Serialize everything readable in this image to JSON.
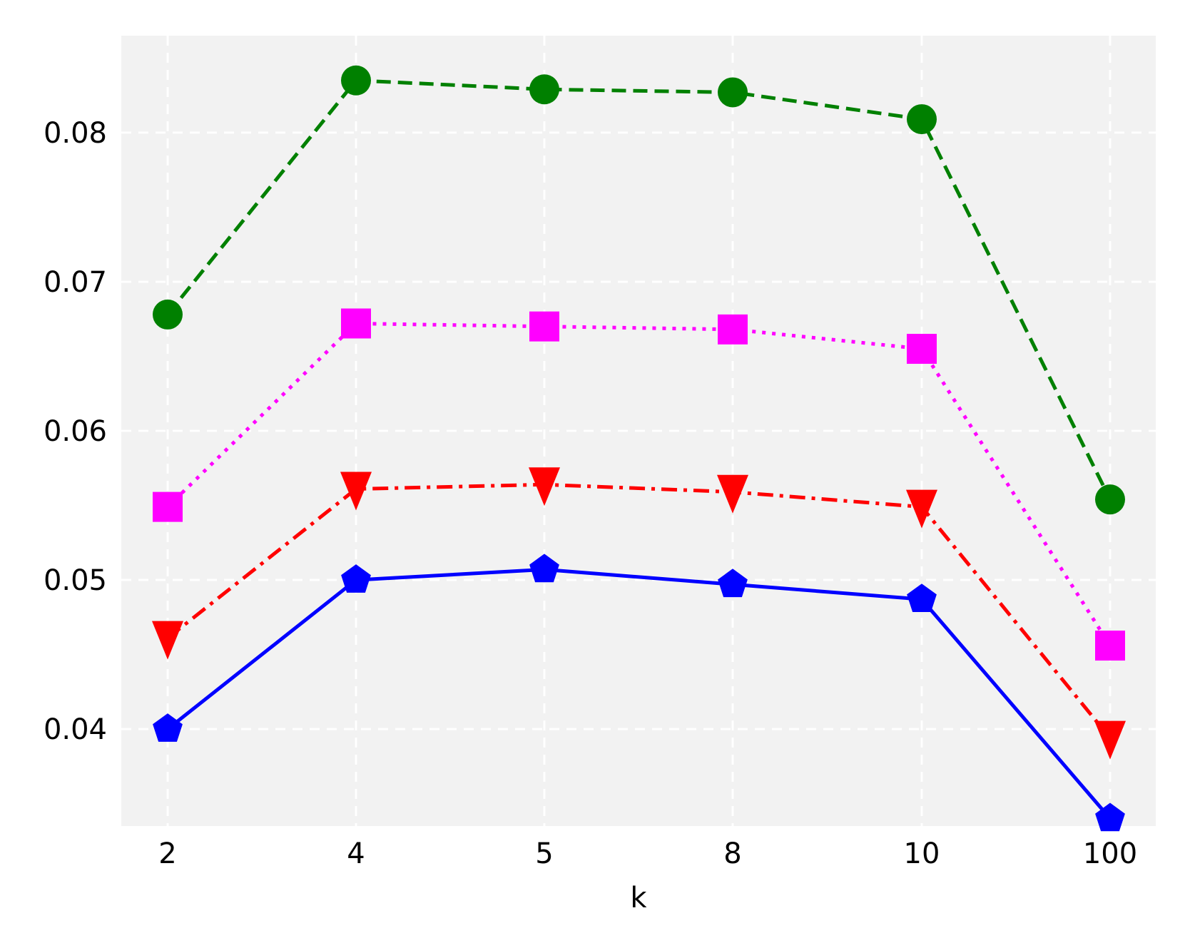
{
  "chart_data": {
    "type": "line",
    "xlabel": "k",
    "ylabel": "",
    "title": "",
    "categories": [
      "2",
      "4",
      "5",
      "8",
      "10",
      "100"
    ],
    "yticks": [
      "0.04",
      "0.05",
      "0.06",
      "0.07",
      "0.08"
    ],
    "ylim": [
      0.0335,
      0.0865
    ],
    "grid": true,
    "background": "#f2f2f2",
    "series": [
      {
        "color": "#008000",
        "linestyle": "dashed",
        "marker": "circle",
        "values": [
          0.0678,
          0.0835,
          0.0829,
          0.0827,
          0.0809,
          0.0554
        ]
      },
      {
        "color": "#ff00ff",
        "linestyle": "dotted",
        "marker": "square",
        "values": [
          0.0549,
          0.0672,
          0.067,
          0.0668,
          0.0655,
          0.0456
        ]
      },
      {
        "color": "#ff0000",
        "linestyle": "dashdot",
        "marker": "triangle-down",
        "values": [
          0.0461,
          0.0561,
          0.0564,
          0.0559,
          0.0549,
          0.0394
        ]
      },
      {
        "color": "#0000ff",
        "linestyle": "solid",
        "marker": "pentagon",
        "values": [
          0.04,
          0.05,
          0.0507,
          0.0497,
          0.0487,
          0.034
        ]
      }
    ]
  }
}
